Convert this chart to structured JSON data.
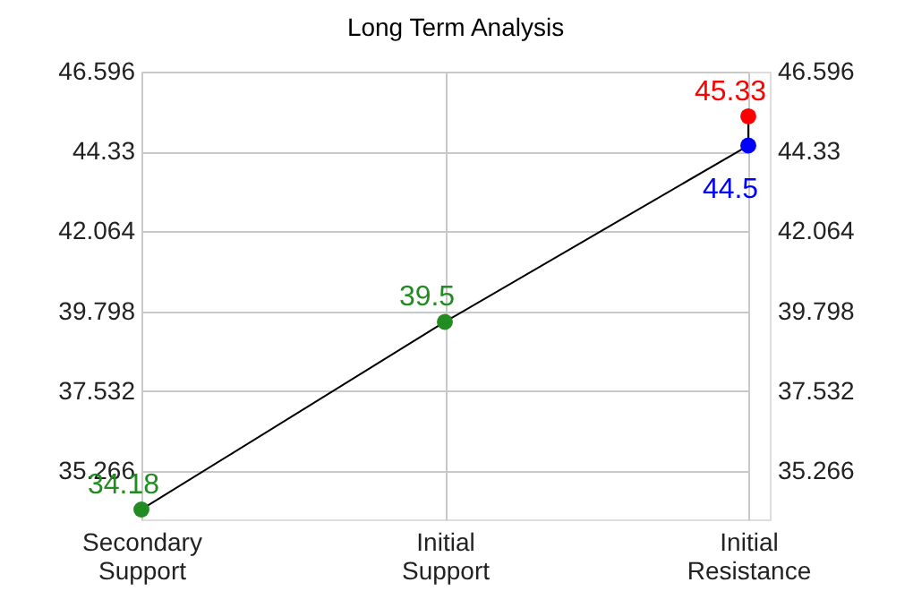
{
  "chart_data": {
    "type": "line",
    "title": "Long Term Analysis",
    "categories": [
      "Secondary Support",
      "Initial Support",
      "Initial Resistance"
    ],
    "ylim": [
      33.9,
      46.596
    ],
    "yticks": [
      35.266,
      37.532,
      39.798,
      42.064,
      44.33,
      46.596
    ],
    "y2lim": [
      33.9,
      46.596
    ],
    "y2ticks": [
      35.266,
      37.532,
      39.798,
      42.064,
      44.33,
      46.596
    ],
    "series": [
      {
        "color": "#000000",
        "x": [
          "Secondary Support",
          "Initial Support",
          "Initial Resistance",
          "Initial Resistance"
        ],
        "values": [
          34.18,
          39.5,
          44.5,
          45.33
        ],
        "colors": [
          "#228b22",
          "#228b22",
          "#0000ff",
          "#ff0000"
        ]
      }
    ],
    "data_labels": true,
    "marker": "circle",
    "grid": true,
    "line_style": "solid"
  }
}
